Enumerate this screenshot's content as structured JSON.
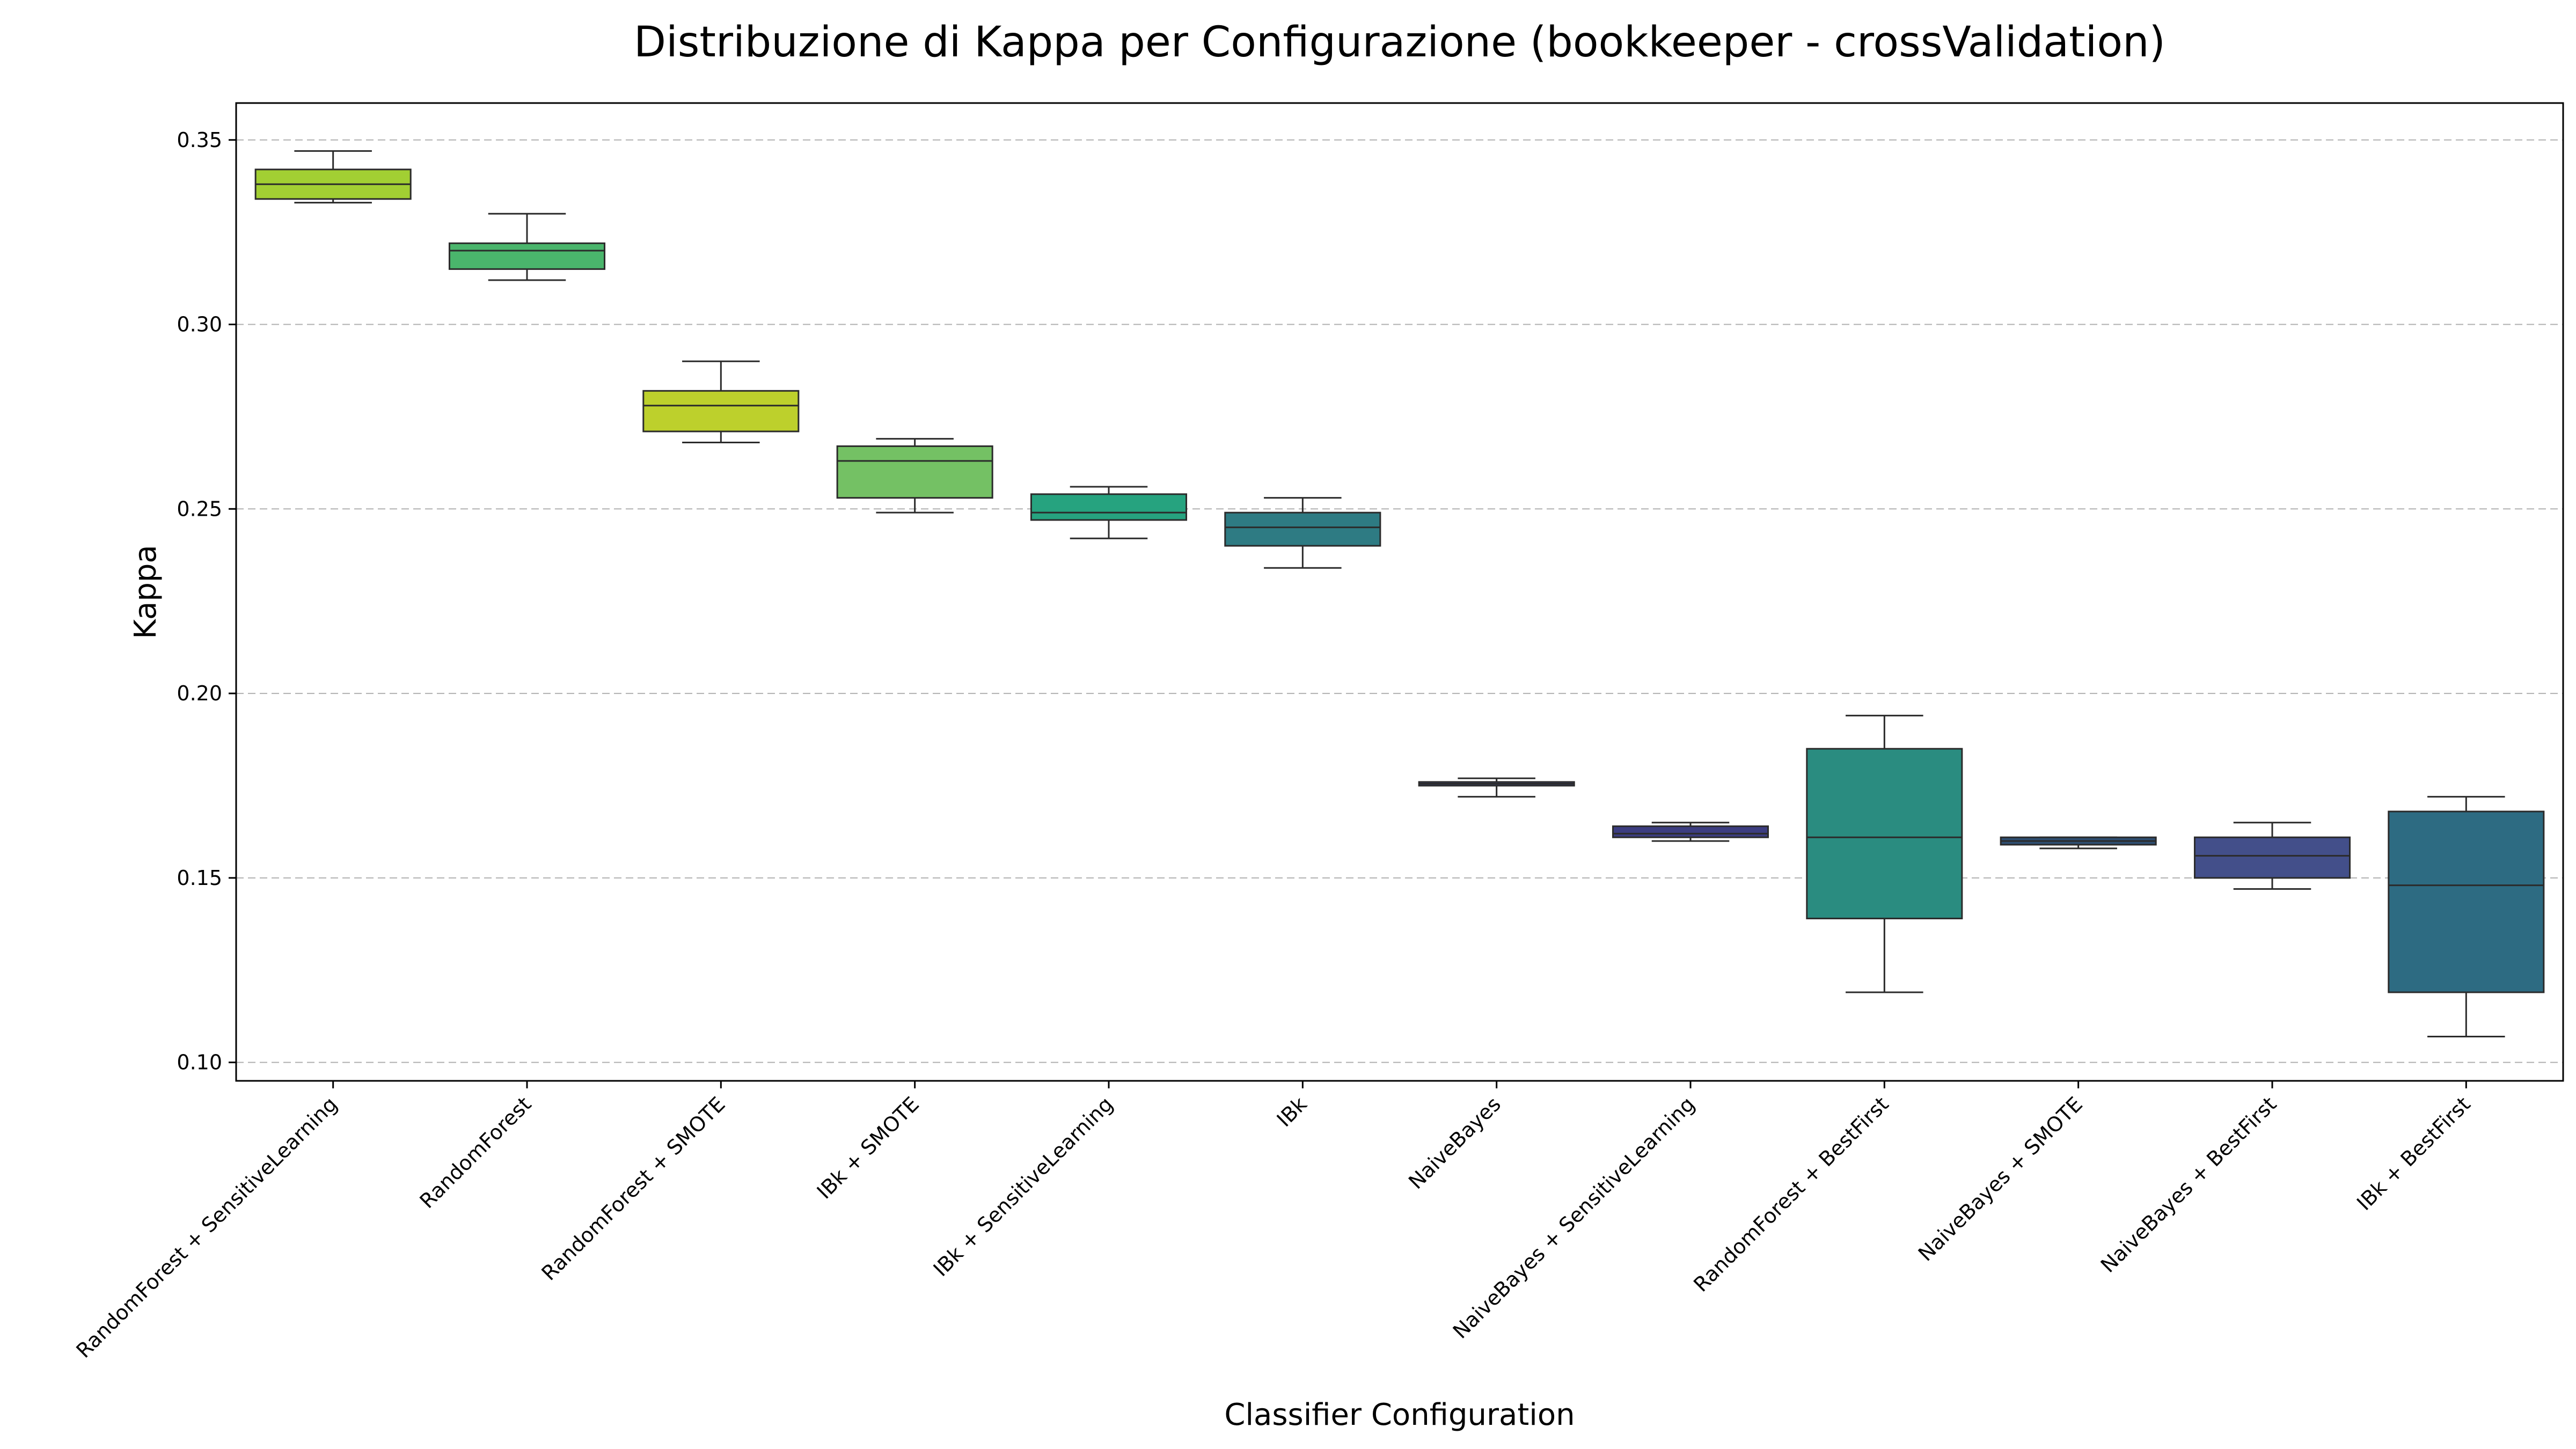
{
  "chart_data": {
    "type": "box",
    "title": "Distribuzione di Kappa per Configurazione (bookkeeper - crossValidation)",
    "xlabel": "Classifier Configuration",
    "ylabel": "Kappa",
    "ylim": [
      0.095,
      0.36
    ],
    "yticks": [
      "0.10",
      "0.15",
      "0.20",
      "0.25",
      "0.30",
      "0.35"
    ],
    "ytick_values": [
      0.1,
      0.15,
      0.2,
      0.25,
      0.3,
      0.35
    ],
    "grid": "y-dashed",
    "categories": [
      "RandomForest + SensitiveLearning",
      "RandomForest",
      "RandomForest + SMOTE",
      "IBk + SMOTE",
      "IBk + SensitiveLearning",
      "IBk",
      "NaiveBayes",
      "NaiveBayes + SensitiveLearning",
      "RandomForest + BestFirst",
      "NaiveBayes + SMOTE",
      "NaiveBayes + BestFirst",
      "IBk + BestFirst"
    ],
    "boxes": [
      {
        "min": 0.333,
        "q1": 0.334,
        "median": 0.338,
        "q3": 0.342,
        "max": 0.347,
        "color": "#a2cf33"
      },
      {
        "min": 0.312,
        "q1": 0.315,
        "median": 0.32,
        "q3": 0.322,
        "max": 0.33,
        "color": "#4ab56c"
      },
      {
        "min": 0.268,
        "q1": 0.271,
        "median": 0.278,
        "q3": 0.282,
        "max": 0.29,
        "color": "#bdd02c"
      },
      {
        "min": 0.249,
        "q1": 0.253,
        "median": 0.263,
        "q3": 0.267,
        "max": 0.269,
        "color": "#74c164"
      },
      {
        "min": 0.242,
        "q1": 0.247,
        "median": 0.249,
        "q3": 0.254,
        "max": 0.256,
        "color": "#26a37f"
      },
      {
        "min": 0.234,
        "q1": 0.24,
        "median": 0.245,
        "q3": 0.249,
        "max": 0.253,
        "color": "#2e7b83"
      },
      {
        "min": 0.172,
        "q1": 0.175,
        "median": 0.1755,
        "q3": 0.176,
        "max": 0.177,
        "color": "#3f4a87"
      },
      {
        "min": 0.16,
        "q1": 0.161,
        "median": 0.162,
        "q3": 0.164,
        "max": 0.165,
        "color": "#3c3d80"
      },
      {
        "min": 0.119,
        "q1": 0.139,
        "median": 0.161,
        "q3": 0.185,
        "max": 0.194,
        "color": "#2a8c80"
      },
      {
        "min": 0.158,
        "q1": 0.159,
        "median": 0.16,
        "q3": 0.161,
        "max": 0.161,
        "color": "#2e4e72"
      },
      {
        "min": 0.147,
        "q1": 0.15,
        "median": 0.156,
        "q3": 0.161,
        "max": 0.165,
        "color": "#434f8a"
      },
      {
        "min": 0.107,
        "q1": 0.119,
        "median": 0.148,
        "q3": 0.168,
        "max": 0.172,
        "color": "#2d6b82"
      }
    ]
  }
}
